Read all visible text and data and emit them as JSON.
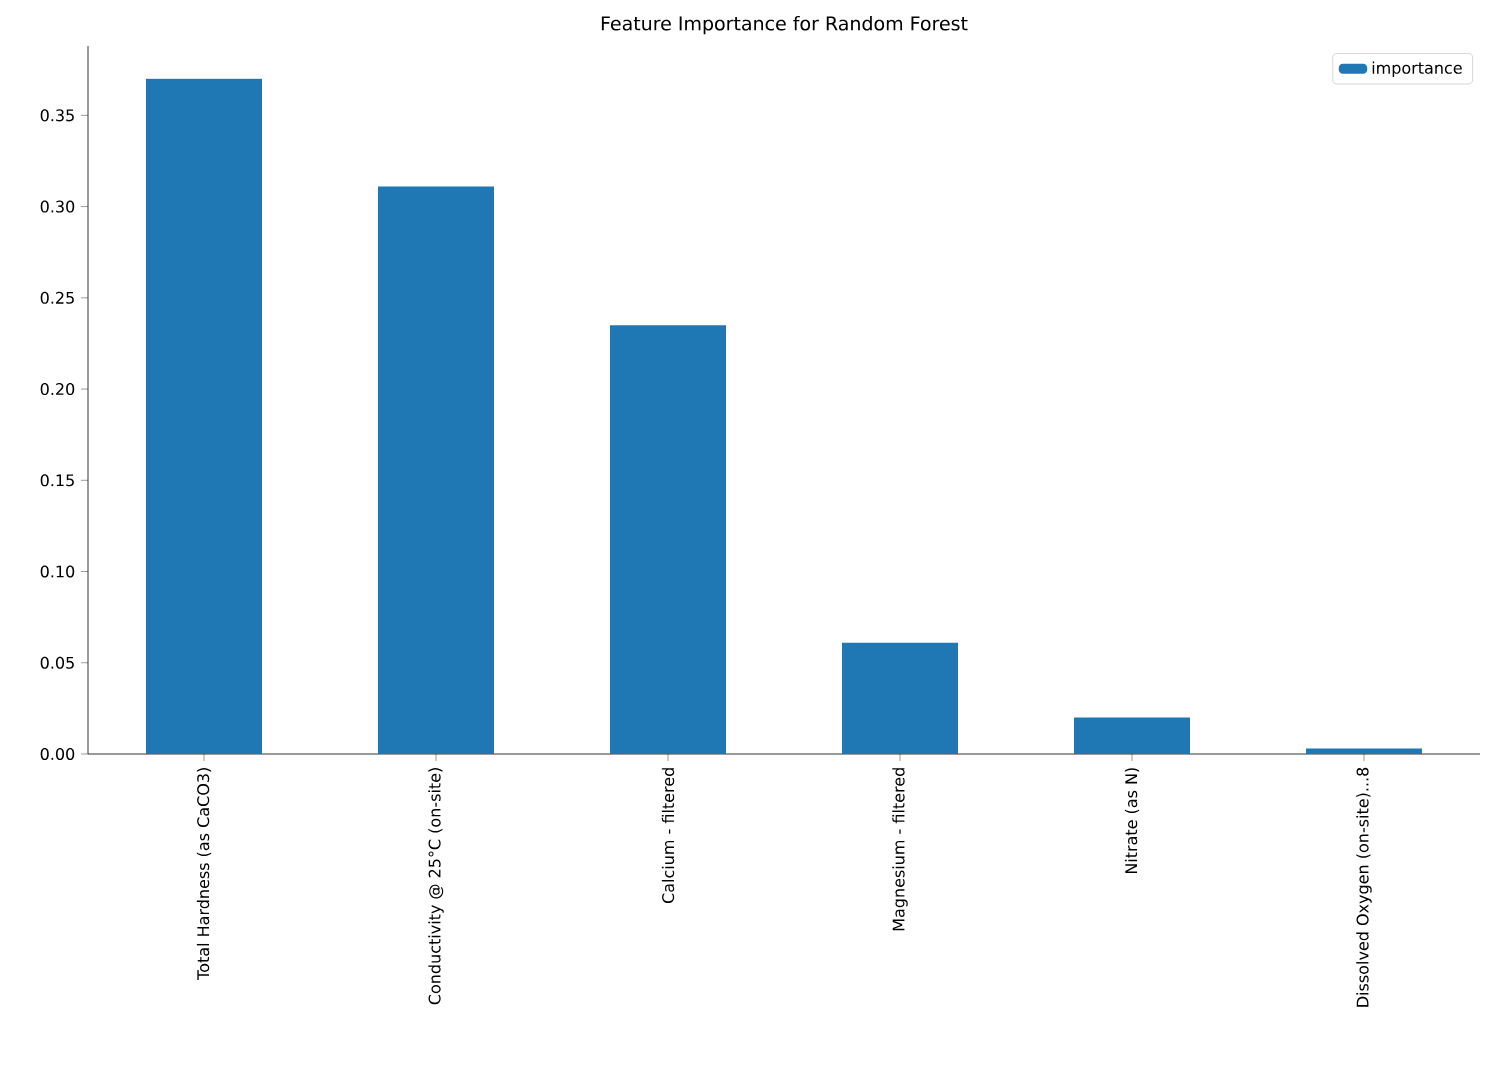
{
  "chart_data": {
    "type": "bar",
    "title": "Feature Importance for Random Forest",
    "categories": [
      "Total Hardness (as CaCO3)",
      "Conductivity @ 25°C (on-site)",
      "Calcium - filtered",
      "Magnesium - filtered",
      "Nitrate (as N)",
      "Dissolved Oxygen (on-site)...8"
    ],
    "series": [
      {
        "name": "importance",
        "color": "#1f77b4",
        "values": [
          0.37,
          0.311,
          0.235,
          0.061,
          0.02,
          0.003
        ]
      }
    ],
    "ylim": [
      0,
      0.388
    ],
    "yticks": [
      {
        "value": 0,
        "label": "0.00"
      },
      {
        "value": 0.05,
        "label": "0.05"
      },
      {
        "value": 0.1,
        "label": "0.10"
      },
      {
        "value": 0.15,
        "label": "0.15"
      },
      {
        "value": 0.2,
        "label": "0.20"
      },
      {
        "value": 0.25,
        "label": "0.25"
      },
      {
        "value": 0.3,
        "label": "0.30"
      },
      {
        "value": 0.35,
        "label": "0.35"
      }
    ],
    "legend": "top right"
  }
}
